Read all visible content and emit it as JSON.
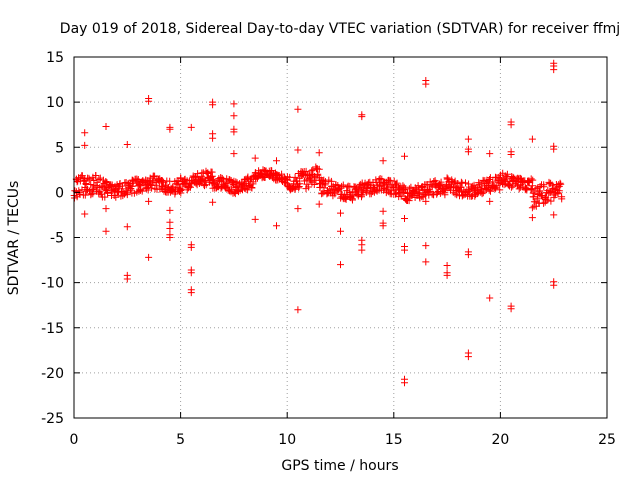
{
  "chart_data": {
    "type": "scatter",
    "title": "Day 019 of 2018, Sidereal Day-to-day VTEC variation (SDTVAR) for receiver ffmj",
    "xlabel": "GPS time / hours",
    "ylabel": "SDTVAR / TECUs",
    "xlim": [
      0,
      25
    ],
    "ylim": [
      -25,
      15
    ],
    "xticks": [
      "0",
      "5",
      "10",
      "15",
      "20",
      "25"
    ],
    "yticks": [
      "15",
      "10",
      "5",
      "0",
      "-5",
      "-10",
      "-15",
      "-20",
      "-25"
    ],
    "grid": true,
    "marker": "plus",
    "color": "#ff0000",
    "band_segments": [
      {
        "x0": 0.0,
        "x1": 1.5,
        "center": 0.5,
        "spread": 1.4
      },
      {
        "x0": 1.5,
        "x1": 3.5,
        "center": 0.6,
        "spread": 1.0
      },
      {
        "x0": 3.5,
        "x1": 5.0,
        "center": 0.9,
        "spread": 1.0
      },
      {
        "x0": 5.0,
        "x1": 6.5,
        "center": 1.2,
        "spread": 1.0
      },
      {
        "x0": 6.5,
        "x1": 8.5,
        "center": 1.0,
        "spread": 1.0
      },
      {
        "x0": 8.5,
        "x1": 10.0,
        "center": 1.7,
        "spread": 0.6
      },
      {
        "x0": 10.0,
        "x1": 11.5,
        "center": 1.5,
        "spread": 1.3
      },
      {
        "x0": 11.5,
        "x1": 13.5,
        "center": 0.3,
        "spread": 1.0
      },
      {
        "x0": 13.5,
        "x1": 15.5,
        "center": 0.4,
        "spread": 1.0
      },
      {
        "x0": 15.5,
        "x1": 17.5,
        "center": 0.2,
        "spread": 1.0
      },
      {
        "x0": 17.5,
        "x1": 20.0,
        "center": 0.6,
        "spread": 1.0
      },
      {
        "x0": 20.0,
        "x1": 21.5,
        "center": 1.2,
        "spread": 0.8
      },
      {
        "x0": 21.5,
        "x1": 22.9,
        "center": -0.3,
        "spread": 1.4
      }
    ],
    "outliers": [
      [
        0.5,
        6.6
      ],
      [
        0.5,
        5.2
      ],
      [
        0.5,
        -2.4
      ],
      [
        1.5,
        7.3
      ],
      [
        1.5,
        -1.8
      ],
      [
        1.5,
        -4.3
      ],
      [
        2.5,
        5.3
      ],
      [
        2.5,
        -3.8
      ],
      [
        2.5,
        -9.2
      ],
      [
        2.5,
        -9.6
      ],
      [
        3.5,
        10.4
      ],
      [
        3.5,
        10.1
      ],
      [
        3.5,
        -1.0
      ],
      [
        3.5,
        -7.2
      ],
      [
        4.5,
        7.2
      ],
      [
        4.5,
        7.0
      ],
      [
        4.5,
        -2.0
      ],
      [
        4.5,
        -3.3
      ],
      [
        4.5,
        -4.0
      ],
      [
        4.5,
        -4.7
      ],
      [
        4.5,
        -5.0
      ],
      [
        5.5,
        7.2
      ],
      [
        5.5,
        -5.8
      ],
      [
        5.5,
        -6.1
      ],
      [
        5.5,
        -8.6
      ],
      [
        5.5,
        -8.9
      ],
      [
        5.5,
        -10.8
      ],
      [
        5.5,
        -11.1
      ],
      [
        6.5,
        10.0
      ],
      [
        6.5,
        9.7
      ],
      [
        6.5,
        6.5
      ],
      [
        6.5,
        6.0
      ],
      [
        6.5,
        -1.1
      ],
      [
        7.5,
        9.8
      ],
      [
        7.5,
        8.5
      ],
      [
        7.5,
        7.0
      ],
      [
        7.5,
        6.7
      ],
      [
        7.5,
        4.3
      ],
      [
        8.5,
        3.8
      ],
      [
        8.5,
        -3.0
      ],
      [
        9.5,
        3.5
      ],
      [
        9.5,
        -3.7
      ],
      [
        10.5,
        9.2
      ],
      [
        10.5,
        4.7
      ],
      [
        10.5,
        -1.8
      ],
      [
        10.5,
        -13.0
      ],
      [
        11.5,
        4.4
      ],
      [
        11.5,
        -1.3
      ],
      [
        12.5,
        -2.3
      ],
      [
        12.5,
        -4.3
      ],
      [
        12.5,
        -8.0
      ],
      [
        13.5,
        8.6
      ],
      [
        13.5,
        8.4
      ],
      [
        13.5,
        -5.3
      ],
      [
        13.5,
        -5.8
      ],
      [
        13.5,
        -6.4
      ],
      [
        14.5,
        3.5
      ],
      [
        14.5,
        -2.1
      ],
      [
        14.5,
        -3.4
      ],
      [
        14.5,
        -3.7
      ],
      [
        15.5,
        4.0
      ],
      [
        15.5,
        -2.9
      ],
      [
        15.5,
        -6.0
      ],
      [
        15.5,
        -6.4
      ],
      [
        15.5,
        -20.7
      ],
      [
        15.5,
        -21.1
      ],
      [
        16.5,
        12.4
      ],
      [
        16.5,
        12.0
      ],
      [
        16.5,
        -1.0
      ],
      [
        16.5,
        -5.9
      ],
      [
        16.5,
        -7.7
      ],
      [
        17.5,
        1.6
      ],
      [
        17.5,
        -8.1
      ],
      [
        17.5,
        -8.9
      ],
      [
        17.5,
        -9.2
      ],
      [
        18.5,
        5.9
      ],
      [
        18.5,
        4.8
      ],
      [
        18.5,
        4.5
      ],
      [
        18.5,
        -6.6
      ],
      [
        18.5,
        -6.9
      ],
      [
        18.5,
        -17.8
      ],
      [
        18.5,
        -18.2
      ],
      [
        19.5,
        4.3
      ],
      [
        19.5,
        -1.0
      ],
      [
        19.5,
        -11.7
      ],
      [
        20.5,
        7.8
      ],
      [
        20.5,
        7.5
      ],
      [
        20.5,
        4.5
      ],
      [
        20.5,
        4.2
      ],
      [
        20.5,
        -12.6
      ],
      [
        20.5,
        -12.9
      ],
      [
        21.5,
        5.9
      ],
      [
        21.5,
        -1.7
      ],
      [
        21.5,
        -2.8
      ],
      [
        22.5,
        14.3
      ],
      [
        22.5,
        14.0
      ],
      [
        22.5,
        13.6
      ],
      [
        22.5,
        5.1
      ],
      [
        22.5,
        4.8
      ],
      [
        22.5,
        -2.5
      ],
      [
        22.5,
        -9.9
      ],
      [
        22.5,
        -10.3
      ]
    ]
  }
}
